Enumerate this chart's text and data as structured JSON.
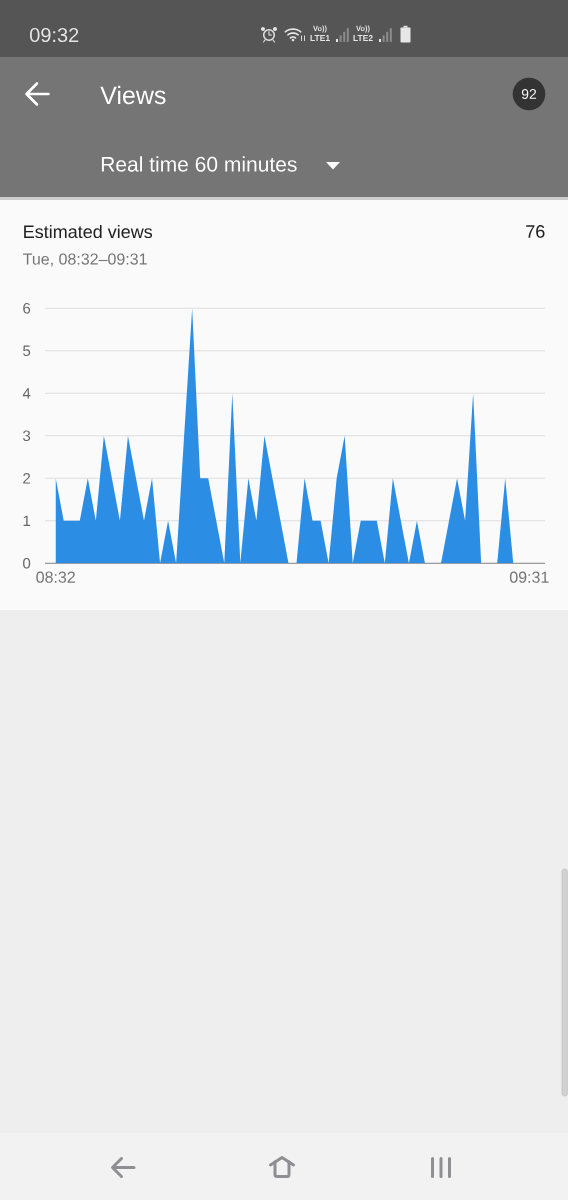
{
  "chart_data": {
    "type": "area",
    "title": "Estimated views",
    "subtitle": "Tue, 08:32–09:31",
    "categories": [
      "08:32",
      null,
      null,
      null,
      null,
      null,
      null,
      null,
      null,
      null,
      null,
      null,
      null,
      null,
      null,
      null,
      null,
      null,
      null,
      null,
      null,
      null,
      null,
      null,
      null,
      null,
      null,
      null,
      null,
      null,
      null,
      null,
      null,
      null,
      null,
      null,
      null,
      null,
      null,
      null,
      null,
      null,
      null,
      null,
      null,
      null,
      null,
      null,
      null,
      null,
      null,
      null,
      null,
      null,
      null,
      null,
      null,
      null,
      null,
      "09:31"
    ],
    "values": [
      2,
      1,
      1,
      1,
      2,
      1,
      3,
      2,
      1,
      3,
      2,
      1,
      2,
      0,
      1,
      0,
      3,
      6,
      2,
      2,
      1,
      0,
      4,
      0,
      2,
      1,
      3,
      2,
      1,
      0,
      0,
      2,
      1,
      1,
      0,
      2,
      3,
      0,
      1,
      1,
      1,
      0,
      2,
      1,
      0,
      1,
      0,
      0,
      0,
      1,
      2,
      1,
      4,
      0,
      0,
      0,
      2,
      0,
      0,
      0
    ],
    "color": "#2b8de3",
    "ylim": [
      0,
      6
    ],
    "yticks": [
      0,
      1,
      2,
      3,
      4,
      5,
      6
    ],
    "grid": "y",
    "annotations": [
      "09:32",
      "Vo))",
      "LTE1",
      "Vo))",
      "LTE2",
      "Views",
      "92",
      "Real time 60 minutes",
      "76"
    ]
  }
}
